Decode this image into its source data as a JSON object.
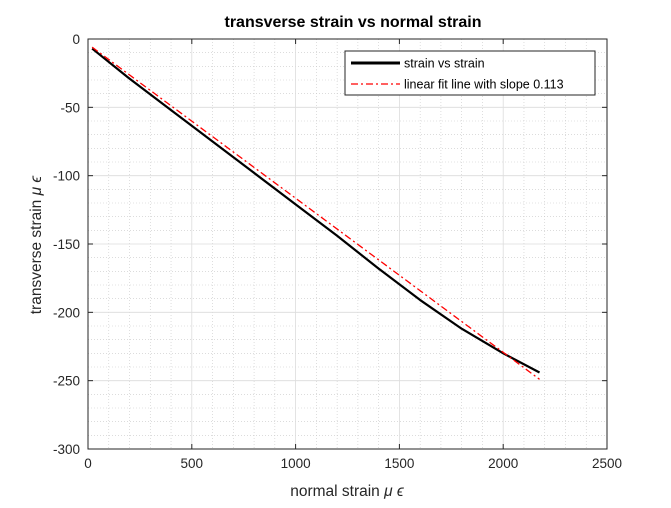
{
  "chart_data": {
    "type": "line",
    "title": "transverse strain vs normal strain",
    "xlabel_text": "normal strain",
    "xlabel_unit": "μ ϵ",
    "ylabel_text": "transverse strain",
    "ylabel_unit": "μ ϵ",
    "xlim": [
      0,
      2500
    ],
    "ylim": [
      -300,
      0
    ],
    "xticks": [
      0,
      500,
      1000,
      1500,
      2000,
      2500
    ],
    "yticks": [
      -300,
      -250,
      -200,
      -150,
      -100,
      -50,
      0
    ],
    "xtick_labels": [
      "0",
      "500",
      "1000",
      "1500",
      "2000",
      "2500"
    ],
    "ytick_labels": [
      "-300",
      "-250",
      "-200",
      "-150",
      "-100",
      "-50",
      "0"
    ],
    "grid": true,
    "minor_grid": true,
    "legend_position": "top-right",
    "series": [
      {
        "name": "strain vs strain",
        "color": "#000000",
        "style": "solid",
        "x": [
          20,
          200,
          400,
          600,
          800,
          1000,
          1200,
          1400,
          1600,
          1800,
          2000,
          2175
        ],
        "y": [
          -7,
          -29,
          -52,
          -75,
          -98,
          -121,
          -144,
          -168,
          -191,
          -212,
          -230,
          -244
        ]
      },
      {
        "name": "linear fit line with slope 0.113",
        "color": "#ff0000",
        "style": "dash-dot",
        "x": [
          20,
          2175
        ],
        "y": [
          -6,
          -249
        ]
      }
    ]
  }
}
